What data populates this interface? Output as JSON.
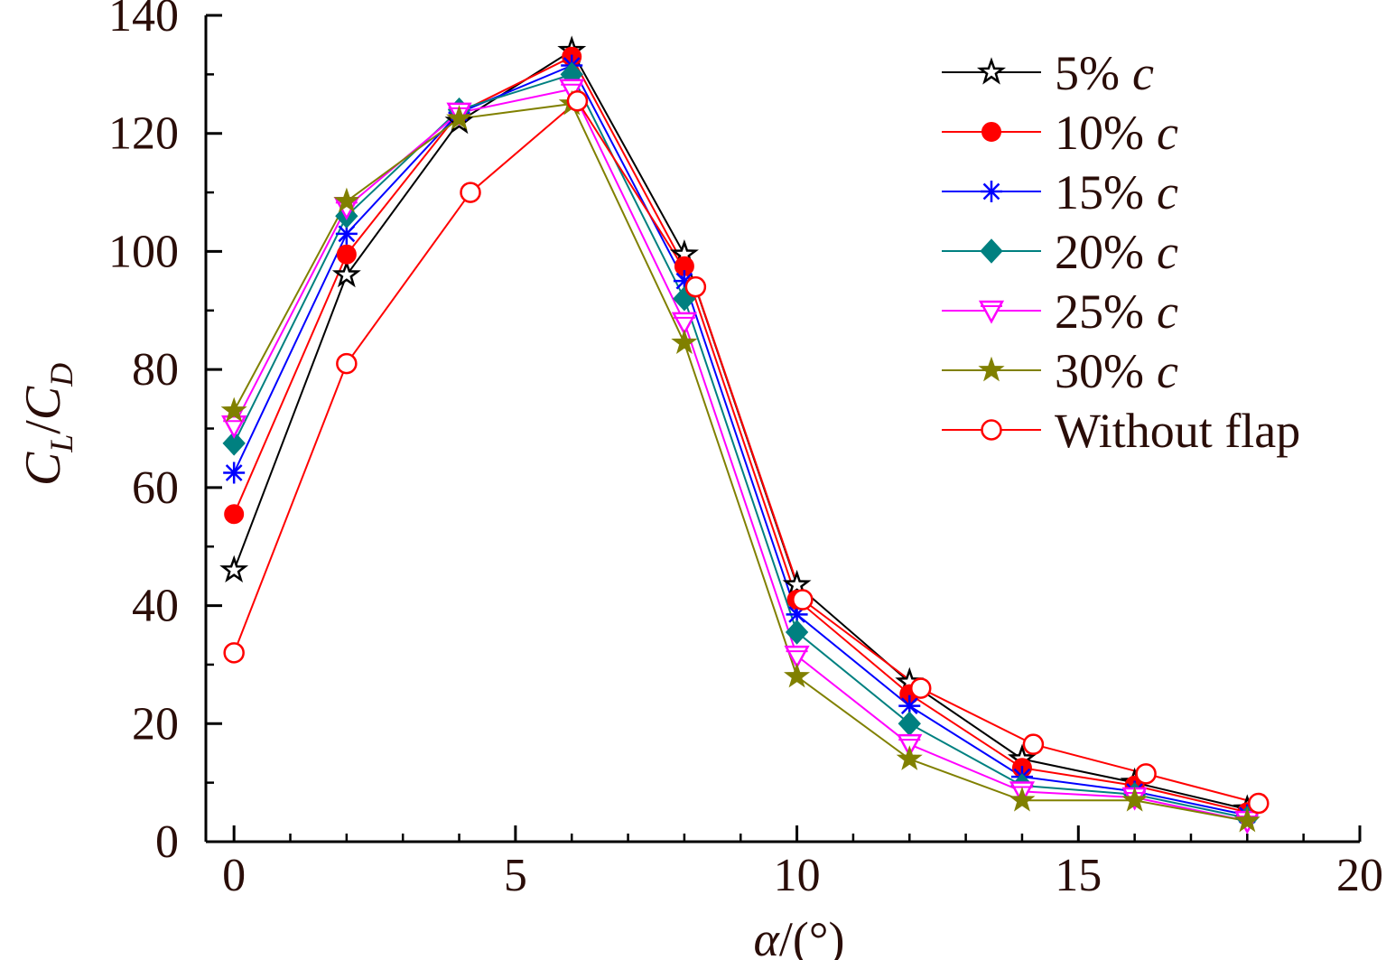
{
  "chart_data": {
    "type": "line",
    "title": "",
    "xlabel": "α/(°)",
    "xlabel_parts": {
      "var": "α",
      "unit": "/(°)"
    },
    "ylabel": "CL/CD",
    "ylabel_parts": {
      "c1": "C",
      "sub1": "L",
      "slash": "/",
      "c2": "C",
      "sub2": "D"
    },
    "xlim": [
      -0.5,
      20
    ],
    "ylim": [
      0,
      140
    ],
    "xticks": [
      0,
      5,
      10,
      15,
      20
    ],
    "xtick_labels": [
      "0",
      "5",
      "10",
      "15",
      "20"
    ],
    "yticks": [
      0,
      20,
      40,
      60,
      80,
      100,
      120,
      140
    ],
    "ytick_labels": [
      "0",
      "20",
      "40",
      "60",
      "80",
      "100",
      "120",
      "140"
    ],
    "x_minor_step": 1,
    "y_minor_step": 10,
    "legend_position": "top-right",
    "series": [
      {
        "name": "5% c",
        "label_num": " 5%",
        "label_var": "c",
        "color": "#000000",
        "marker": "star-open",
        "x": [
          0,
          2,
          4,
          6,
          8,
          10,
          12,
          14,
          16,
          18
        ],
        "y": [
          46,
          96,
          122,
          134,
          99.5,
          43.5,
          27,
          14,
          10,
          5.5
        ]
      },
      {
        "name": "10% c",
        "label_num": "10%",
        "label_var": "c",
        "color": "#ff0000",
        "marker": "circle-filled",
        "x": [
          0,
          2,
          4,
          6,
          8,
          10,
          12,
          14,
          16,
          18
        ],
        "y": [
          55.5,
          99.5,
          123.5,
          133,
          97.5,
          41,
          25,
          12.5,
          9.5,
          5
        ]
      },
      {
        "name": "15% c",
        "label_num": "15%",
        "label_var": "c",
        "color": "#0000ff",
        "marker": "asterisk",
        "x": [
          0,
          2,
          4,
          6,
          8,
          10,
          12,
          14,
          16,
          18
        ],
        "y": [
          62.5,
          103,
          123.5,
          131.5,
          95,
          38.5,
          23,
          11,
          8.5,
          4.5
        ]
      },
      {
        "name": "20% c",
        "label_num": "20%",
        "label_var": "c",
        "color": "#008080",
        "marker": "diamond-filled",
        "x": [
          0,
          2,
          4,
          6,
          8,
          10,
          12,
          14,
          16,
          18
        ],
        "y": [
          67.5,
          106,
          124,
          130,
          92,
          35.5,
          20,
          9.5,
          8,
          4
        ]
      },
      {
        "name": "25% c",
        "label_num": "25%",
        "label_var": "c",
        "color": "#ff00ff",
        "marker": "triangle-down-open",
        "x": [
          0,
          2,
          4,
          6,
          8,
          10,
          12,
          14,
          16,
          18
        ],
        "y": [
          70.5,
          107.5,
          123.5,
          127.5,
          88,
          31.5,
          16.5,
          8.5,
          7.5,
          3.5
        ]
      },
      {
        "name": "30% c",
        "label_num": "30%",
        "label_var": "c",
        "color": "#808000",
        "marker": "star-filled",
        "x": [
          0,
          2,
          4,
          6,
          8,
          10,
          12,
          14,
          16,
          18
        ],
        "y": [
          73,
          108.5,
          122.5,
          125,
          84.5,
          28,
          14,
          7,
          7,
          3.5
        ]
      },
      {
        "name": "Without flap",
        "label_num": "Without flap",
        "label_var": "",
        "color": "#ff0000",
        "marker": "circle-open",
        "x": [
          0,
          2,
          4.2,
          6.1,
          8.2,
          10.1,
          12.2,
          14.2,
          16.2,
          18.2
        ],
        "y": [
          32,
          81,
          110,
          125.5,
          94,
          41,
          26,
          16.5,
          11.5,
          6.5
        ]
      }
    ]
  }
}
